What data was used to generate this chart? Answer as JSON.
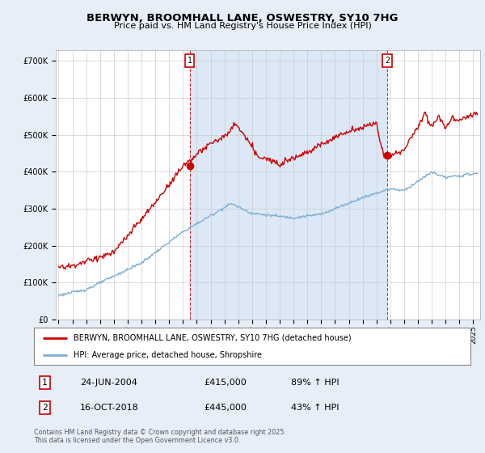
{
  "title": "BERWYN, BROOMHALL LANE, OSWESTRY, SY10 7HG",
  "subtitle": "Price paid vs. HM Land Registry's House Price Index (HPI)",
  "bg_color": "#e8eef8",
  "plot_bg_color": "#ffffff",
  "shade_color": "#dce8f5",
  "red_color": "#cc0000",
  "blue_color": "#7bafd4",
  "marker1_x": 2004.48,
  "marker1_y": 415000,
  "marker1_label": "1",
  "marker1_date": "24-JUN-2004",
  "marker1_price": "£415,000",
  "marker1_hpi": "89% ↑ HPI",
  "marker2_x": 2018.79,
  "marker2_y": 445000,
  "marker2_label": "2",
  "marker2_date": "16-OCT-2018",
  "marker2_price": "£445,000",
  "marker2_hpi": "43% ↑ HPI",
  "ylim": [
    0,
    730000
  ],
  "yticks": [
    0,
    100000,
    200000,
    300000,
    400000,
    500000,
    600000,
    700000
  ],
  "xlim": [
    1994.8,
    2025.5
  ],
  "xticks": [
    1995,
    1996,
    1997,
    1998,
    1999,
    2000,
    2001,
    2002,
    2003,
    2004,
    2005,
    2006,
    2007,
    2008,
    2009,
    2010,
    2011,
    2012,
    2013,
    2014,
    2015,
    2016,
    2017,
    2018,
    2019,
    2020,
    2021,
    2022,
    2023,
    2024,
    2025
  ],
  "legend_line1": "BERWYN, BROOMHALL LANE, OSWESTRY, SY10 7HG (detached house)",
  "legend_line2": "HPI: Average price, detached house, Shropshire",
  "footer1": "Contains HM Land Registry data © Crown copyright and database right 2025.",
  "footer2": "This data is licensed under the Open Government Licence v3.0."
}
